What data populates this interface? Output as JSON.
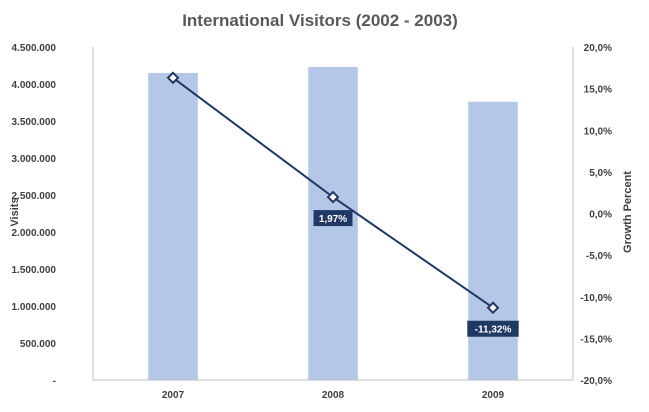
{
  "chart_data": {
    "type": "bar",
    "title": "International Visitors (2002 - 2003)",
    "categories": [
      "2007",
      "2008",
      "2009"
    ],
    "series": [
      {
        "type": "bar",
        "axis": "left",
        "values": [
          4150000,
          4230000,
          3760000
        ],
        "color": "#b4c7e7"
      },
      {
        "type": "line",
        "axis": "right",
        "values": [
          16.3,
          1.97,
          -11.32
        ],
        "color": "#203864",
        "data_labels": [
          "",
          "1,97%",
          "-11,32%"
        ]
      }
    ],
    "ylabel": "Visits",
    "y2label": "Growth Percent",
    "ylim": [
      0,
      4500000
    ],
    "y2lim": [
      -20,
      20
    ],
    "yticks": [
      "-",
      "500.000",
      "1.000.000",
      "1.500.000",
      "2.000.000",
      "2.500.000",
      "3.000.000",
      "3.500.000",
      "4.000.000",
      "4.500.000"
    ],
    "y2ticks": [
      "-20,0%",
      "-15,0%",
      "-10,0%",
      "-5,0%",
      "0,0%",
      "5,0%",
      "10,0%",
      "15,0%",
      "20,0%"
    ],
    "label_bg": "#203864",
    "grid": false,
    "legend": "none"
  }
}
